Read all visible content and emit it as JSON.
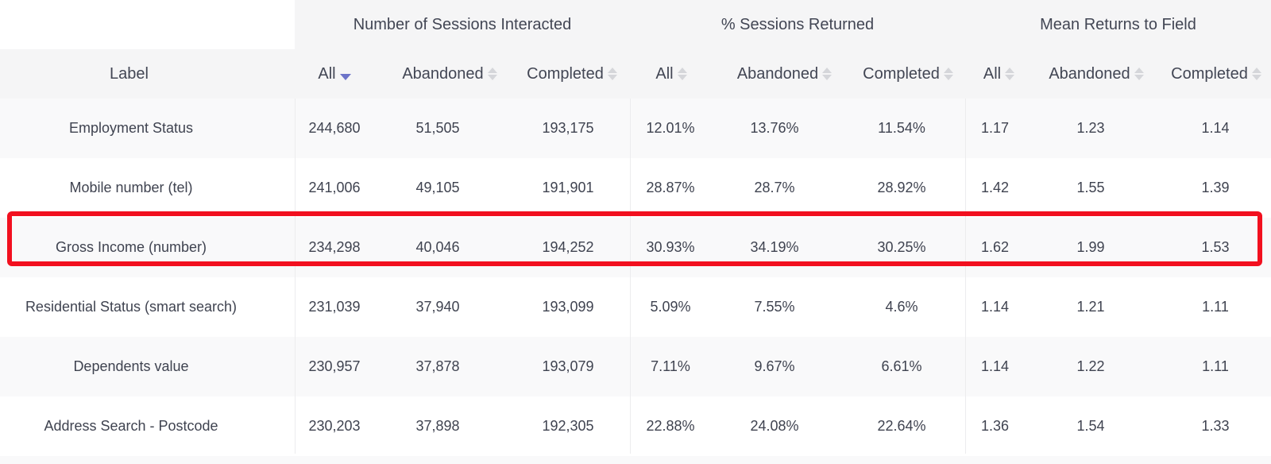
{
  "groups": {
    "sessions_interacted": "Number of Sessions Interacted",
    "sessions_returned": "% Sessions Returned",
    "mean_returns": "Mean Returns to Field"
  },
  "columns": {
    "label": "Label",
    "all": "All",
    "abandoned": "Abandoned",
    "completed": "Completed"
  },
  "sort": {
    "active_column": "sessions_interacted.all",
    "direction": "descending",
    "active_color": "#6d74c9"
  },
  "highlight_color": "#f2101f",
  "rows": [
    {
      "label": "Employment Status",
      "sessions": [
        "244,680",
        "51,505",
        "193,175"
      ],
      "returned": [
        "12.01%",
        "13.76%",
        "11.54%"
      ],
      "mean": [
        "1.17",
        "1.23",
        "1.14"
      ]
    },
    {
      "label": "Mobile number (tel)",
      "sessions": [
        "241,006",
        "49,105",
        "191,901"
      ],
      "returned": [
        "28.87%",
        "28.7%",
        "28.92%"
      ],
      "mean": [
        "1.42",
        "1.55",
        "1.39"
      ]
    },
    {
      "label": "Gross Income (number)",
      "sessions": [
        "234,298",
        "40,046",
        "194,252"
      ],
      "returned": [
        "30.93%",
        "34.19%",
        "30.25%"
      ],
      "mean": [
        "1.62",
        "1.99",
        "1.53"
      ]
    },
    {
      "label": "Residential Status (smart search)",
      "sessions": [
        "231,039",
        "37,940",
        "193,099"
      ],
      "returned": [
        "5.09%",
        "7.55%",
        "4.6%"
      ],
      "mean": [
        "1.14",
        "1.21",
        "1.11"
      ]
    },
    {
      "label": "Dependents value",
      "sessions": [
        "230,957",
        "37,878",
        "193,079"
      ],
      "returned": [
        "7.11%",
        "9.67%",
        "6.61%"
      ],
      "mean": [
        "1.14",
        "1.22",
        "1.11"
      ]
    },
    {
      "label": "Address Search - Postcode",
      "sessions": [
        "230,203",
        "37,898",
        "192,305"
      ],
      "returned": [
        "22.88%",
        "24.08%",
        "22.64%"
      ],
      "mean": [
        "1.36",
        "1.54",
        "1.33"
      ]
    }
  ]
}
